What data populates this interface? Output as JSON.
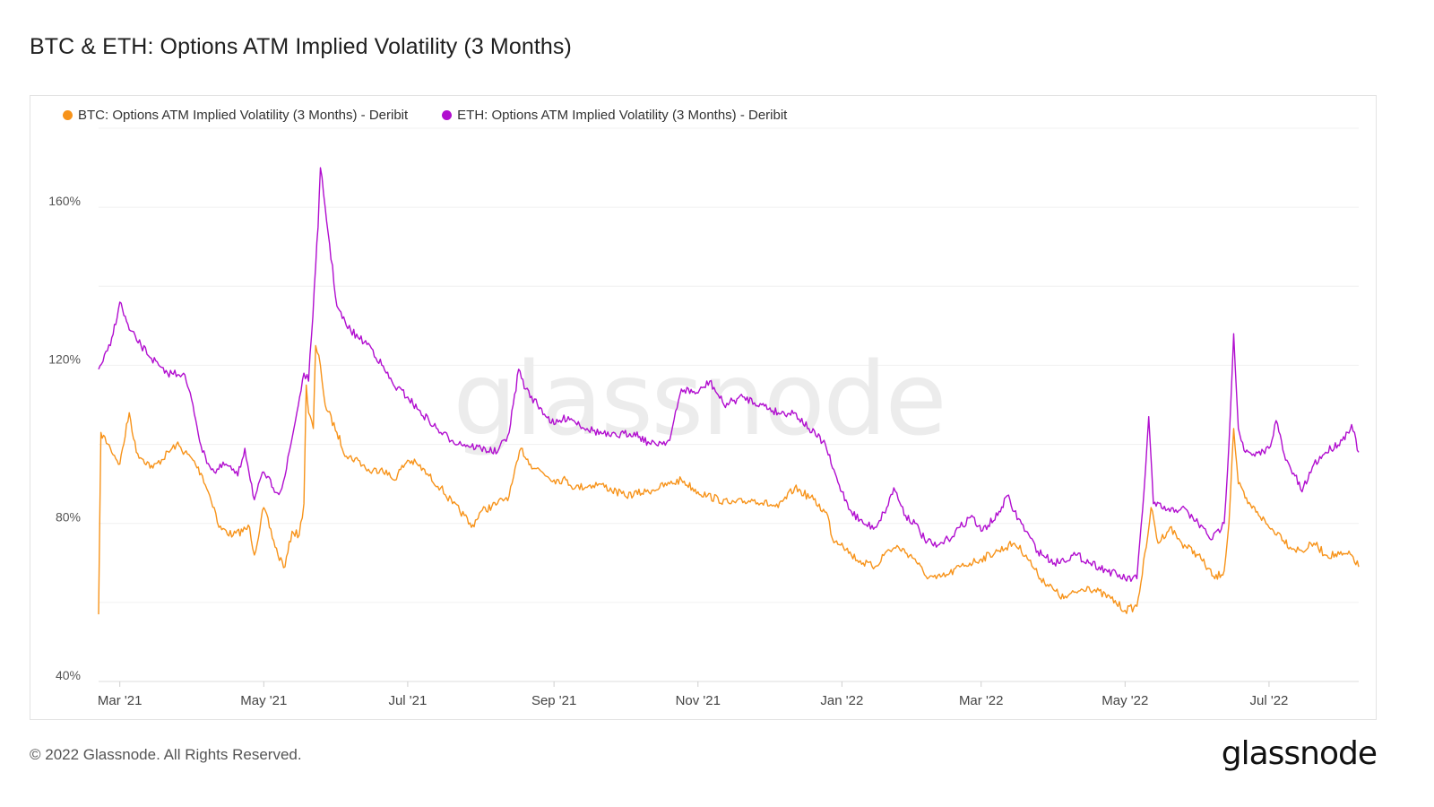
{
  "header": {
    "title": "BTC & ETH: Options ATM Implied Volatility (3 Months)"
  },
  "footer": {
    "copyright": "© 2022 Glassnode. All Rights Reserved.",
    "brand": "glassnode",
    "watermark": "glassnode"
  },
  "chart_data": {
    "type": "line",
    "title": "BTC & ETH: Options ATM Implied Volatility (3 Months)",
    "xlabel": "",
    "ylabel": "",
    "x_range": [
      "2021-02-20",
      "2022-08-08"
    ],
    "ylim": [
      40,
      180
    ],
    "y_ticks": [
      40,
      80,
      120,
      160
    ],
    "y_tick_labels": [
      "40%",
      "80%",
      "120%",
      "160%"
    ],
    "x_ticks": [
      {
        "date": "2021-03-01",
        "label": "Mar '21"
      },
      {
        "date": "2021-05-01",
        "label": "May '21"
      },
      {
        "date": "2021-07-01",
        "label": "Jul '21"
      },
      {
        "date": "2021-09-01",
        "label": "Sep '21"
      },
      {
        "date": "2021-11-01",
        "label": "Nov '21"
      },
      {
        "date": "2022-01-01",
        "label": "Jan '22"
      },
      {
        "date": "2022-03-01",
        "label": "Mar '22"
      },
      {
        "date": "2022-05-01",
        "label": "May '22"
      },
      {
        "date": "2022-07-01",
        "label": "Jul '22"
      }
    ],
    "grid": true,
    "legend_position": "top-left",
    "series": [
      {
        "name": "BTC: Options ATM Implied Volatility (3 Months) - Deribit",
        "color": "#f7931a",
        "points": [
          [
            "2021-02-20",
            57
          ],
          [
            "2021-02-21",
            103
          ],
          [
            "2021-02-25",
            99
          ],
          [
            "2021-03-01",
            95
          ],
          [
            "2021-03-05",
            108
          ],
          [
            "2021-03-08",
            98
          ],
          [
            "2021-03-15",
            94
          ],
          [
            "2021-03-25",
            100
          ],
          [
            "2021-04-01",
            96
          ],
          [
            "2021-04-05",
            92
          ],
          [
            "2021-04-10",
            84
          ],
          [
            "2021-04-12",
            79
          ],
          [
            "2021-04-18",
            77
          ],
          [
            "2021-04-25",
            79
          ],
          [
            "2021-04-27",
            72
          ],
          [
            "2021-05-01",
            84
          ],
          [
            "2021-05-07",
            72
          ],
          [
            "2021-05-10",
            69
          ],
          [
            "2021-05-13",
            78
          ],
          [
            "2021-05-16",
            77
          ],
          [
            "2021-05-18",
            85
          ],
          [
            "2021-05-19",
            115
          ],
          [
            "2021-05-20",
            108
          ],
          [
            "2021-05-22",
            104
          ],
          [
            "2021-05-23",
            125
          ],
          [
            "2021-05-25",
            120
          ],
          [
            "2021-05-27",
            110
          ],
          [
            "2021-06-01",
            103
          ],
          [
            "2021-06-05",
            97
          ],
          [
            "2021-06-10",
            96
          ],
          [
            "2021-06-15",
            93
          ],
          [
            "2021-06-20",
            94
          ],
          [
            "2021-06-25",
            91
          ],
          [
            "2021-07-01",
            96
          ],
          [
            "2021-07-05",
            95
          ],
          [
            "2021-07-10",
            92
          ],
          [
            "2021-07-15",
            89
          ],
          [
            "2021-07-20",
            85
          ],
          [
            "2021-07-25",
            82
          ],
          [
            "2021-07-28",
            79
          ],
          [
            "2021-08-01",
            83
          ],
          [
            "2021-08-08",
            85
          ],
          [
            "2021-08-13",
            87
          ],
          [
            "2021-08-18",
            99
          ],
          [
            "2021-08-22",
            95
          ],
          [
            "2021-09-01",
            91
          ],
          [
            "2021-09-06",
            91
          ],
          [
            "2021-09-10",
            89
          ],
          [
            "2021-09-20",
            90
          ],
          [
            "2021-10-01",
            87
          ],
          [
            "2021-10-10",
            88
          ],
          [
            "2021-10-20",
            90
          ],
          [
            "2021-10-25",
            91
          ],
          [
            "2021-11-01",
            88
          ],
          [
            "2021-11-05",
            87
          ],
          [
            "2021-11-15",
            85
          ],
          [
            "2021-11-25",
            86
          ],
          [
            "2021-12-05",
            84
          ],
          [
            "2021-12-12",
            89
          ],
          [
            "2021-12-20",
            86
          ],
          [
            "2021-12-26",
            82
          ],
          [
            "2021-12-28",
            76
          ],
          [
            "2022-01-01",
            75
          ],
          [
            "2022-01-05",
            72
          ],
          [
            "2022-01-10",
            70
          ],
          [
            "2022-01-15",
            69
          ],
          [
            "2022-01-20",
            73
          ],
          [
            "2022-01-25",
            74
          ],
          [
            "2022-02-01",
            71
          ],
          [
            "2022-02-05",
            67
          ],
          [
            "2022-02-10",
            66
          ],
          [
            "2022-02-15",
            67
          ],
          [
            "2022-02-20",
            69
          ],
          [
            "2022-03-01",
            71
          ],
          [
            "2022-03-08",
            73
          ],
          [
            "2022-03-15",
            75
          ],
          [
            "2022-03-20",
            72
          ],
          [
            "2022-03-25",
            67
          ],
          [
            "2022-04-01",
            63
          ],
          [
            "2022-04-05",
            61
          ],
          [
            "2022-04-15",
            64
          ],
          [
            "2022-04-25",
            61
          ],
          [
            "2022-05-01",
            58
          ],
          [
            "2022-05-06",
            59
          ],
          [
            "2022-05-10",
            74
          ],
          [
            "2022-05-12",
            84
          ],
          [
            "2022-05-15",
            75
          ],
          [
            "2022-05-20",
            79
          ],
          [
            "2022-05-25",
            75
          ],
          [
            "2022-06-01",
            72
          ],
          [
            "2022-06-08",
            66
          ],
          [
            "2022-06-12",
            68
          ],
          [
            "2022-06-14",
            80
          ],
          [
            "2022-06-16",
            104
          ],
          [
            "2022-06-18",
            90
          ],
          [
            "2022-06-22",
            85
          ],
          [
            "2022-06-26",
            83
          ],
          [
            "2022-07-01",
            79
          ],
          [
            "2022-07-06",
            77
          ],
          [
            "2022-07-10",
            74
          ],
          [
            "2022-07-15",
            73
          ],
          [
            "2022-07-20",
            75
          ],
          [
            "2022-07-25",
            72
          ],
          [
            "2022-08-01",
            72
          ],
          [
            "2022-08-05",
            72
          ],
          [
            "2022-08-08",
            69
          ]
        ]
      },
      {
        "name": "ETH: Options ATM Implied Volatility (3 Months) - Deribit",
        "color": "#b10ecf",
        "points": [
          [
            "2021-02-20",
            119
          ],
          [
            "2021-02-25",
            125
          ],
          [
            "2021-03-01",
            136
          ],
          [
            "2021-03-05",
            129
          ],
          [
            "2021-03-10",
            125
          ],
          [
            "2021-03-20",
            118
          ],
          [
            "2021-03-28",
            118
          ],
          [
            "2021-04-01",
            110
          ],
          [
            "2021-04-05",
            98
          ],
          [
            "2021-04-10",
            93
          ],
          [
            "2021-04-15",
            95
          ],
          [
            "2021-04-20",
            92
          ],
          [
            "2021-04-23",
            99
          ],
          [
            "2021-04-27",
            86
          ],
          [
            "2021-05-01",
            93
          ],
          [
            "2021-05-05",
            89
          ],
          [
            "2021-05-08",
            88
          ],
          [
            "2021-05-10",
            92
          ],
          [
            "2021-05-15",
            108
          ],
          [
            "2021-05-18",
            118
          ],
          [
            "2021-05-20",
            116
          ],
          [
            "2021-05-23",
            145
          ],
          [
            "2021-05-24",
            155
          ],
          [
            "2021-05-25",
            170
          ],
          [
            "2021-05-27",
            160
          ],
          [
            "2021-06-01",
            135
          ],
          [
            "2021-06-05",
            130
          ],
          [
            "2021-06-10",
            127
          ],
          [
            "2021-06-15",
            125
          ],
          [
            "2021-06-20",
            120
          ],
          [
            "2021-06-25",
            115
          ],
          [
            "2021-07-01",
            112
          ],
          [
            "2021-07-05",
            109
          ],
          [
            "2021-07-10",
            106
          ],
          [
            "2021-07-15",
            103
          ],
          [
            "2021-07-20",
            101
          ],
          [
            "2021-07-25",
            100
          ],
          [
            "2021-08-01",
            99
          ],
          [
            "2021-08-08",
            98
          ],
          [
            "2021-08-13",
            103
          ],
          [
            "2021-08-17",
            119
          ],
          [
            "2021-08-20",
            114
          ],
          [
            "2021-08-25",
            110
          ],
          [
            "2021-09-01",
            105
          ],
          [
            "2021-09-07",
            107
          ],
          [
            "2021-09-15",
            104
          ],
          [
            "2021-09-25",
            102
          ],
          [
            "2021-10-05",
            103
          ],
          [
            "2021-10-12",
            100
          ],
          [
            "2021-10-20",
            101
          ],
          [
            "2021-10-25",
            114
          ],
          [
            "2021-11-01",
            113
          ],
          [
            "2021-11-06",
            116
          ],
          [
            "2021-11-12",
            110
          ],
          [
            "2021-11-20",
            112
          ],
          [
            "2021-11-28",
            110
          ],
          [
            "2021-12-05",
            108
          ],
          [
            "2021-12-12",
            108
          ],
          [
            "2021-12-18",
            104
          ],
          [
            "2021-12-25",
            100
          ],
          [
            "2021-12-28",
            94
          ],
          [
            "2022-01-01",
            88
          ],
          [
            "2022-01-05",
            83
          ],
          [
            "2022-01-10",
            80
          ],
          [
            "2022-01-15",
            79
          ],
          [
            "2022-01-20",
            84
          ],
          [
            "2022-01-23",
            89
          ],
          [
            "2022-01-28",
            82
          ],
          [
            "2022-02-01",
            80
          ],
          [
            "2022-02-05",
            76
          ],
          [
            "2022-02-10",
            74
          ],
          [
            "2022-02-15",
            76
          ],
          [
            "2022-02-20",
            79
          ],
          [
            "2022-02-25",
            82
          ],
          [
            "2022-03-01",
            78
          ],
          [
            "2022-03-08",
            82
          ],
          [
            "2022-03-12",
            87
          ],
          [
            "2022-03-15",
            83
          ],
          [
            "2022-03-20",
            78
          ],
          [
            "2022-03-25",
            73
          ],
          [
            "2022-04-01",
            70
          ],
          [
            "2022-04-10",
            72
          ],
          [
            "2022-04-20",
            69
          ],
          [
            "2022-05-01",
            66
          ],
          [
            "2022-05-06",
            66
          ],
          [
            "2022-05-09",
            88
          ],
          [
            "2022-05-11",
            107
          ],
          [
            "2022-05-13",
            85
          ],
          [
            "2022-05-20",
            83
          ],
          [
            "2022-05-25",
            84
          ],
          [
            "2022-06-01",
            80
          ],
          [
            "2022-06-07",
            76
          ],
          [
            "2022-06-12",
            80
          ],
          [
            "2022-06-14",
            100
          ],
          [
            "2022-06-16",
            128
          ],
          [
            "2022-06-18",
            104
          ],
          [
            "2022-06-21",
            98
          ],
          [
            "2022-06-25",
            97
          ],
          [
            "2022-07-01",
            99
          ],
          [
            "2022-07-04",
            106
          ],
          [
            "2022-07-08",
            96
          ],
          [
            "2022-07-12",
            92
          ],
          [
            "2022-07-15",
            88
          ],
          [
            "2022-07-20",
            95
          ],
          [
            "2022-07-25",
            98
          ],
          [
            "2022-08-01",
            101
          ],
          [
            "2022-08-05",
            105
          ],
          [
            "2022-08-08",
            98
          ]
        ]
      }
    ]
  }
}
